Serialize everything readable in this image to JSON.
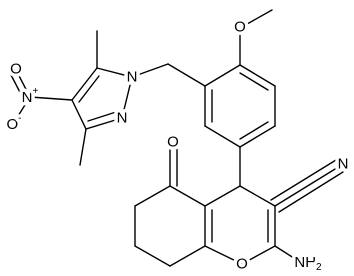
{
  "atoms": [
    {
      "symbol": "O"
    },
    {
      "symbol": "N",
      "charge": "+"
    },
    {
      "symbol": "O",
      "charge": "-"
    },
    {
      "symbol": "N"
    },
    {
      "symbol": "N"
    },
    {
      "symbol": "O"
    },
    {
      "symbol": "O"
    },
    {
      "symbol": "N"
    },
    {
      "symbol": "O"
    },
    {
      "symbol": "NH",
      "subscript": "2"
    }
  ]
}
